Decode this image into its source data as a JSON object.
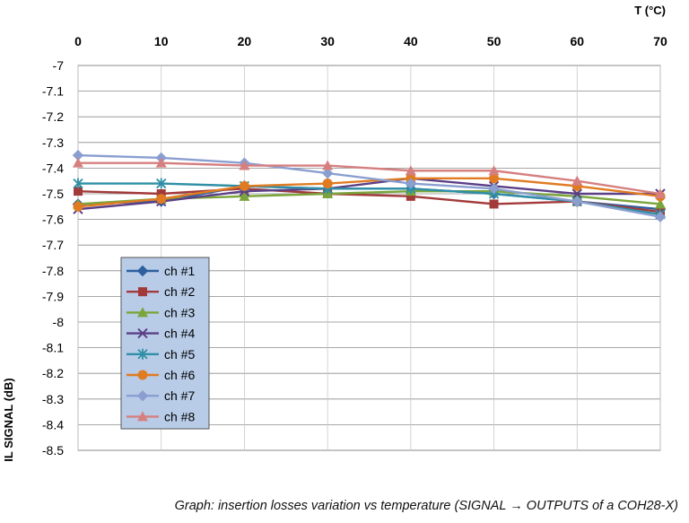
{
  "chart_data": {
    "type": "line",
    "title": "",
    "xlabel": "T (°C)",
    "ylabel": "IL SIGNAL (dB)",
    "x": [
      0,
      10,
      20,
      30,
      40,
      50,
      60,
      70
    ],
    "xlim": [
      0,
      70
    ],
    "ylim": [
      -8.5,
      -7
    ],
    "x_ticks": [
      "0",
      "10",
      "20",
      "30",
      "40",
      "50",
      "60",
      "70"
    ],
    "y_ticks": [
      "-7",
      "-7.1",
      "-7.2",
      "-7.3",
      "-7.4",
      "-7.5",
      "-7.6",
      "-7.7",
      "-7.8",
      "-7.9",
      "-8",
      "-8.1",
      "-8.2",
      "-8.3",
      "-8.4",
      "-8.5"
    ],
    "grid": true,
    "x_axis_position": "top",
    "legend_position": "lower-left",
    "series": [
      {
        "name": "ch #1",
        "color": "#2e5f9e",
        "marker": "diamond",
        "values": [
          -7.54,
          -7.53,
          -7.47,
          -7.48,
          -7.48,
          -7.5,
          -7.53,
          -7.56
        ]
      },
      {
        "name": "ch #2",
        "color": "#a33a3a",
        "marker": "square",
        "values": [
          -7.49,
          -7.5,
          -7.48,
          -7.5,
          -7.51,
          -7.54,
          -7.53,
          -7.57
        ]
      },
      {
        "name": "ch #3",
        "color": "#7aa53a",
        "marker": "triangle",
        "values": [
          -7.54,
          -7.52,
          -7.51,
          -7.5,
          -7.49,
          -7.49,
          -7.51,
          -7.54
        ]
      },
      {
        "name": "ch #4",
        "color": "#5b3f86",
        "marker": "x",
        "values": [
          -7.56,
          -7.53,
          -7.49,
          -7.48,
          -7.44,
          -7.47,
          -7.5,
          -7.5
        ]
      },
      {
        "name": "ch #5",
        "color": "#2f8fa6",
        "marker": "asterisk",
        "values": [
          -7.46,
          -7.46,
          -7.47,
          -7.48,
          -7.48,
          -7.5,
          -7.53,
          -7.58
        ]
      },
      {
        "name": "ch #6",
        "color": "#e07b22",
        "marker": "circle",
        "values": [
          -7.55,
          -7.52,
          -7.47,
          -7.46,
          -7.44,
          -7.44,
          -7.47,
          -7.51
        ]
      },
      {
        "name": "ch #7",
        "color": "#8a9fd0",
        "marker": "diamond",
        "values": [
          -7.35,
          -7.36,
          -7.38,
          -7.42,
          -7.46,
          -7.48,
          -7.53,
          -7.59
        ]
      },
      {
        "name": "ch #8",
        "color": "#d67f7f",
        "marker": "triangle",
        "values": [
          -7.38,
          -7.38,
          -7.39,
          -7.39,
          -7.41,
          -7.41,
          -7.45,
          -7.5
        ]
      }
    ]
  },
  "caption": "Graph: insertion losses variation vs temperature (SIGNAL → OUTPUTS of a COH28-X)"
}
